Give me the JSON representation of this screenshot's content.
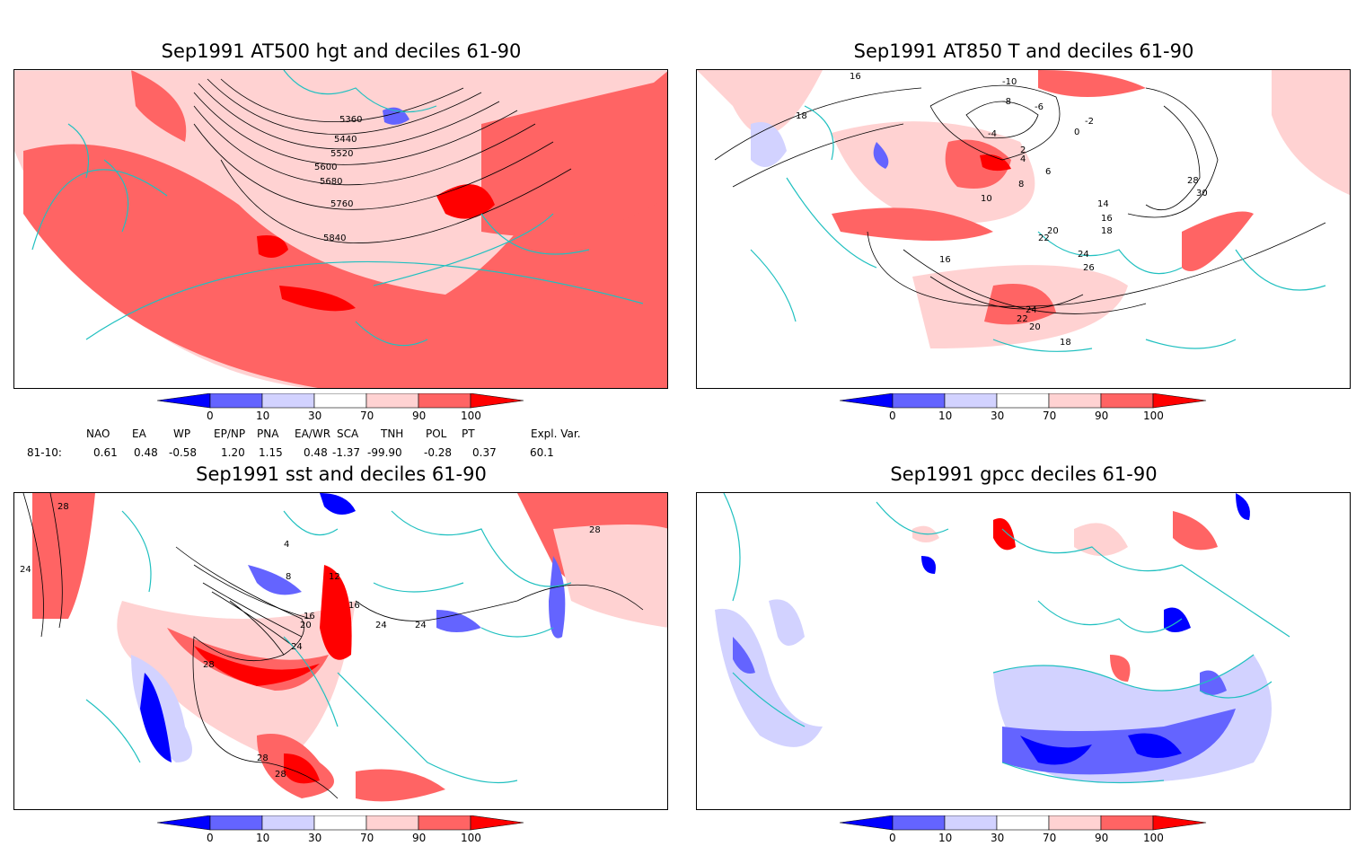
{
  "panels": [
    {
      "title": "Sep1991 AT500 hgt and deciles 61-90",
      "contour_labels": [
        "5360",
        "5440",
        "5520",
        "5600",
        "5680",
        "5760",
        "5840"
      ]
    },
    {
      "title": "Sep1991 AT850 T and deciles 61-90",
      "contour_labels": [
        "16",
        "18",
        "-10",
        "-8",
        "-6",
        "-4",
        "-2",
        "0",
        "2",
        "4",
        "6",
        "8",
        "10",
        "14",
        "16",
        "18",
        "20",
        "22",
        "24",
        "26",
        "28",
        "30",
        "16",
        "18",
        "20",
        "22",
        "24"
      ]
    },
    {
      "title": "Sep1991 sst and deciles 61-90",
      "contour_labels": [
        "28",
        "24",
        "4",
        "8",
        "12",
        "16",
        "20",
        "24",
        "16",
        "24",
        "24",
        "28",
        "28",
        "28",
        "28"
      ]
    },
    {
      "title": "Sep1991 gpcc deciles 61-90",
      "contour_labels": []
    }
  ],
  "colorbar": {
    "tick_labels": [
      "0",
      "10",
      "30",
      "70",
      "90",
      "100"
    ],
    "colors": [
      "#0000ff",
      "#6464ff",
      "#d2d2ff",
      "#ffffff",
      "#ffd2d2",
      "#ff6464",
      "#ff0000"
    ]
  },
  "indices": {
    "headers": [
      "NAO",
      "EA",
      "WP",
      "EP/NP",
      "PNA",
      "EA/WR",
      "SCA",
      "TNH",
      "POL",
      "PT",
      "Expl. Var."
    ],
    "row_label": "81-10:",
    "values": [
      "0.61",
      "0.48",
      "-0.58",
      "1.20",
      "1.15",
      "0.48",
      "-1.37",
      "-99.90",
      "-0.28",
      "0.37",
      "60.1"
    ]
  },
  "colors": {
    "coast": "#20c0c0",
    "contour": "#000000",
    "light_red": "#ffd2d2",
    "mid_red": "#ff6464",
    "red": "#ff0000",
    "light_blue": "#d2d2ff",
    "mid_blue": "#6464ff",
    "blue": "#0000ff"
  }
}
